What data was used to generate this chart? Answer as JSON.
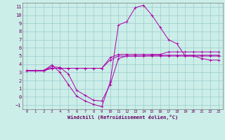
{
  "xlabel": "Windchill (Refroidissement éolien,°C)",
  "ylabel": "",
  "xlim": [
    -0.5,
    23.5
  ],
  "ylim": [
    -1.5,
    11.5
  ],
  "yticks": [
    -1,
    0,
    1,
    2,
    3,
    4,
    5,
    6,
    7,
    8,
    9,
    10,
    11
  ],
  "xticks": [
    0,
    1,
    2,
    3,
    4,
    5,
    6,
    7,
    8,
    9,
    10,
    11,
    12,
    13,
    14,
    15,
    16,
    17,
    18,
    19,
    20,
    21,
    22,
    23
  ],
  "bg_color": "#cceee8",
  "line_color": "#aa00aa",
  "grid_color": "#99cccc",
  "lines": [
    {
      "x": [
        0,
        1,
        2,
        3,
        4,
        5,
        6,
        7,
        8,
        9,
        10,
        11,
        12,
        13,
        14,
        15,
        16,
        17,
        18,
        19,
        20,
        21,
        22,
        23
      ],
      "y": [
        3.2,
        3.2,
        3.2,
        3.7,
        3.6,
        2.8,
        0.8,
        0.2,
        -0.4,
        -0.5,
        1.5,
        4.7,
        5.0,
        5.0,
        5.0,
        5.1,
        5.1,
        5.1,
        5.1,
        5.1,
        5.1,
        5.1,
        5.1,
        5.1
      ]
    },
    {
      "x": [
        0,
        1,
        2,
        3,
        4,
        5,
        6,
        7,
        8,
        9,
        10,
        11,
        12,
        13,
        14,
        15,
        16,
        17,
        18,
        19,
        20,
        21,
        22,
        23
      ],
      "y": [
        3.2,
        3.2,
        3.2,
        3.9,
        3.0,
        1.5,
        0.1,
        -0.5,
        -0.9,
        -1.2,
        1.8,
        8.8,
        9.2,
        10.9,
        11.2,
        10.0,
        8.5,
        7.0,
        6.5,
        5.0,
        5.0,
        4.7,
        4.5,
        4.5
      ]
    },
    {
      "x": [
        0,
        1,
        2,
        3,
        4,
        5,
        6,
        7,
        8,
        9,
        10,
        11,
        12,
        13,
        14,
        15,
        16,
        17,
        18,
        19,
        20,
        21,
        22,
        23
      ],
      "y": [
        3.2,
        3.2,
        3.2,
        3.5,
        3.5,
        3.5,
        3.5,
        3.5,
        3.5,
        3.5,
        4.5,
        5.0,
        5.0,
        5.0,
        5.0,
        5.0,
        5.0,
        5.0,
        5.0,
        5.0,
        5.0,
        5.0,
        5.0,
        5.0
      ]
    },
    {
      "x": [
        0,
        1,
        2,
        3,
        4,
        5,
        6,
        7,
        8,
        9,
        10,
        11,
        12,
        13,
        14,
        15,
        16,
        17,
        18,
        19,
        20,
        21,
        22,
        23
      ],
      "y": [
        3.2,
        3.2,
        3.2,
        3.5,
        3.5,
        3.5,
        3.5,
        3.5,
        3.5,
        3.5,
        4.8,
        5.2,
        5.2,
        5.2,
        5.2,
        5.2,
        5.2,
        5.5,
        5.5,
        5.5,
        5.5,
        5.5,
        5.5,
        5.5
      ]
    }
  ]
}
